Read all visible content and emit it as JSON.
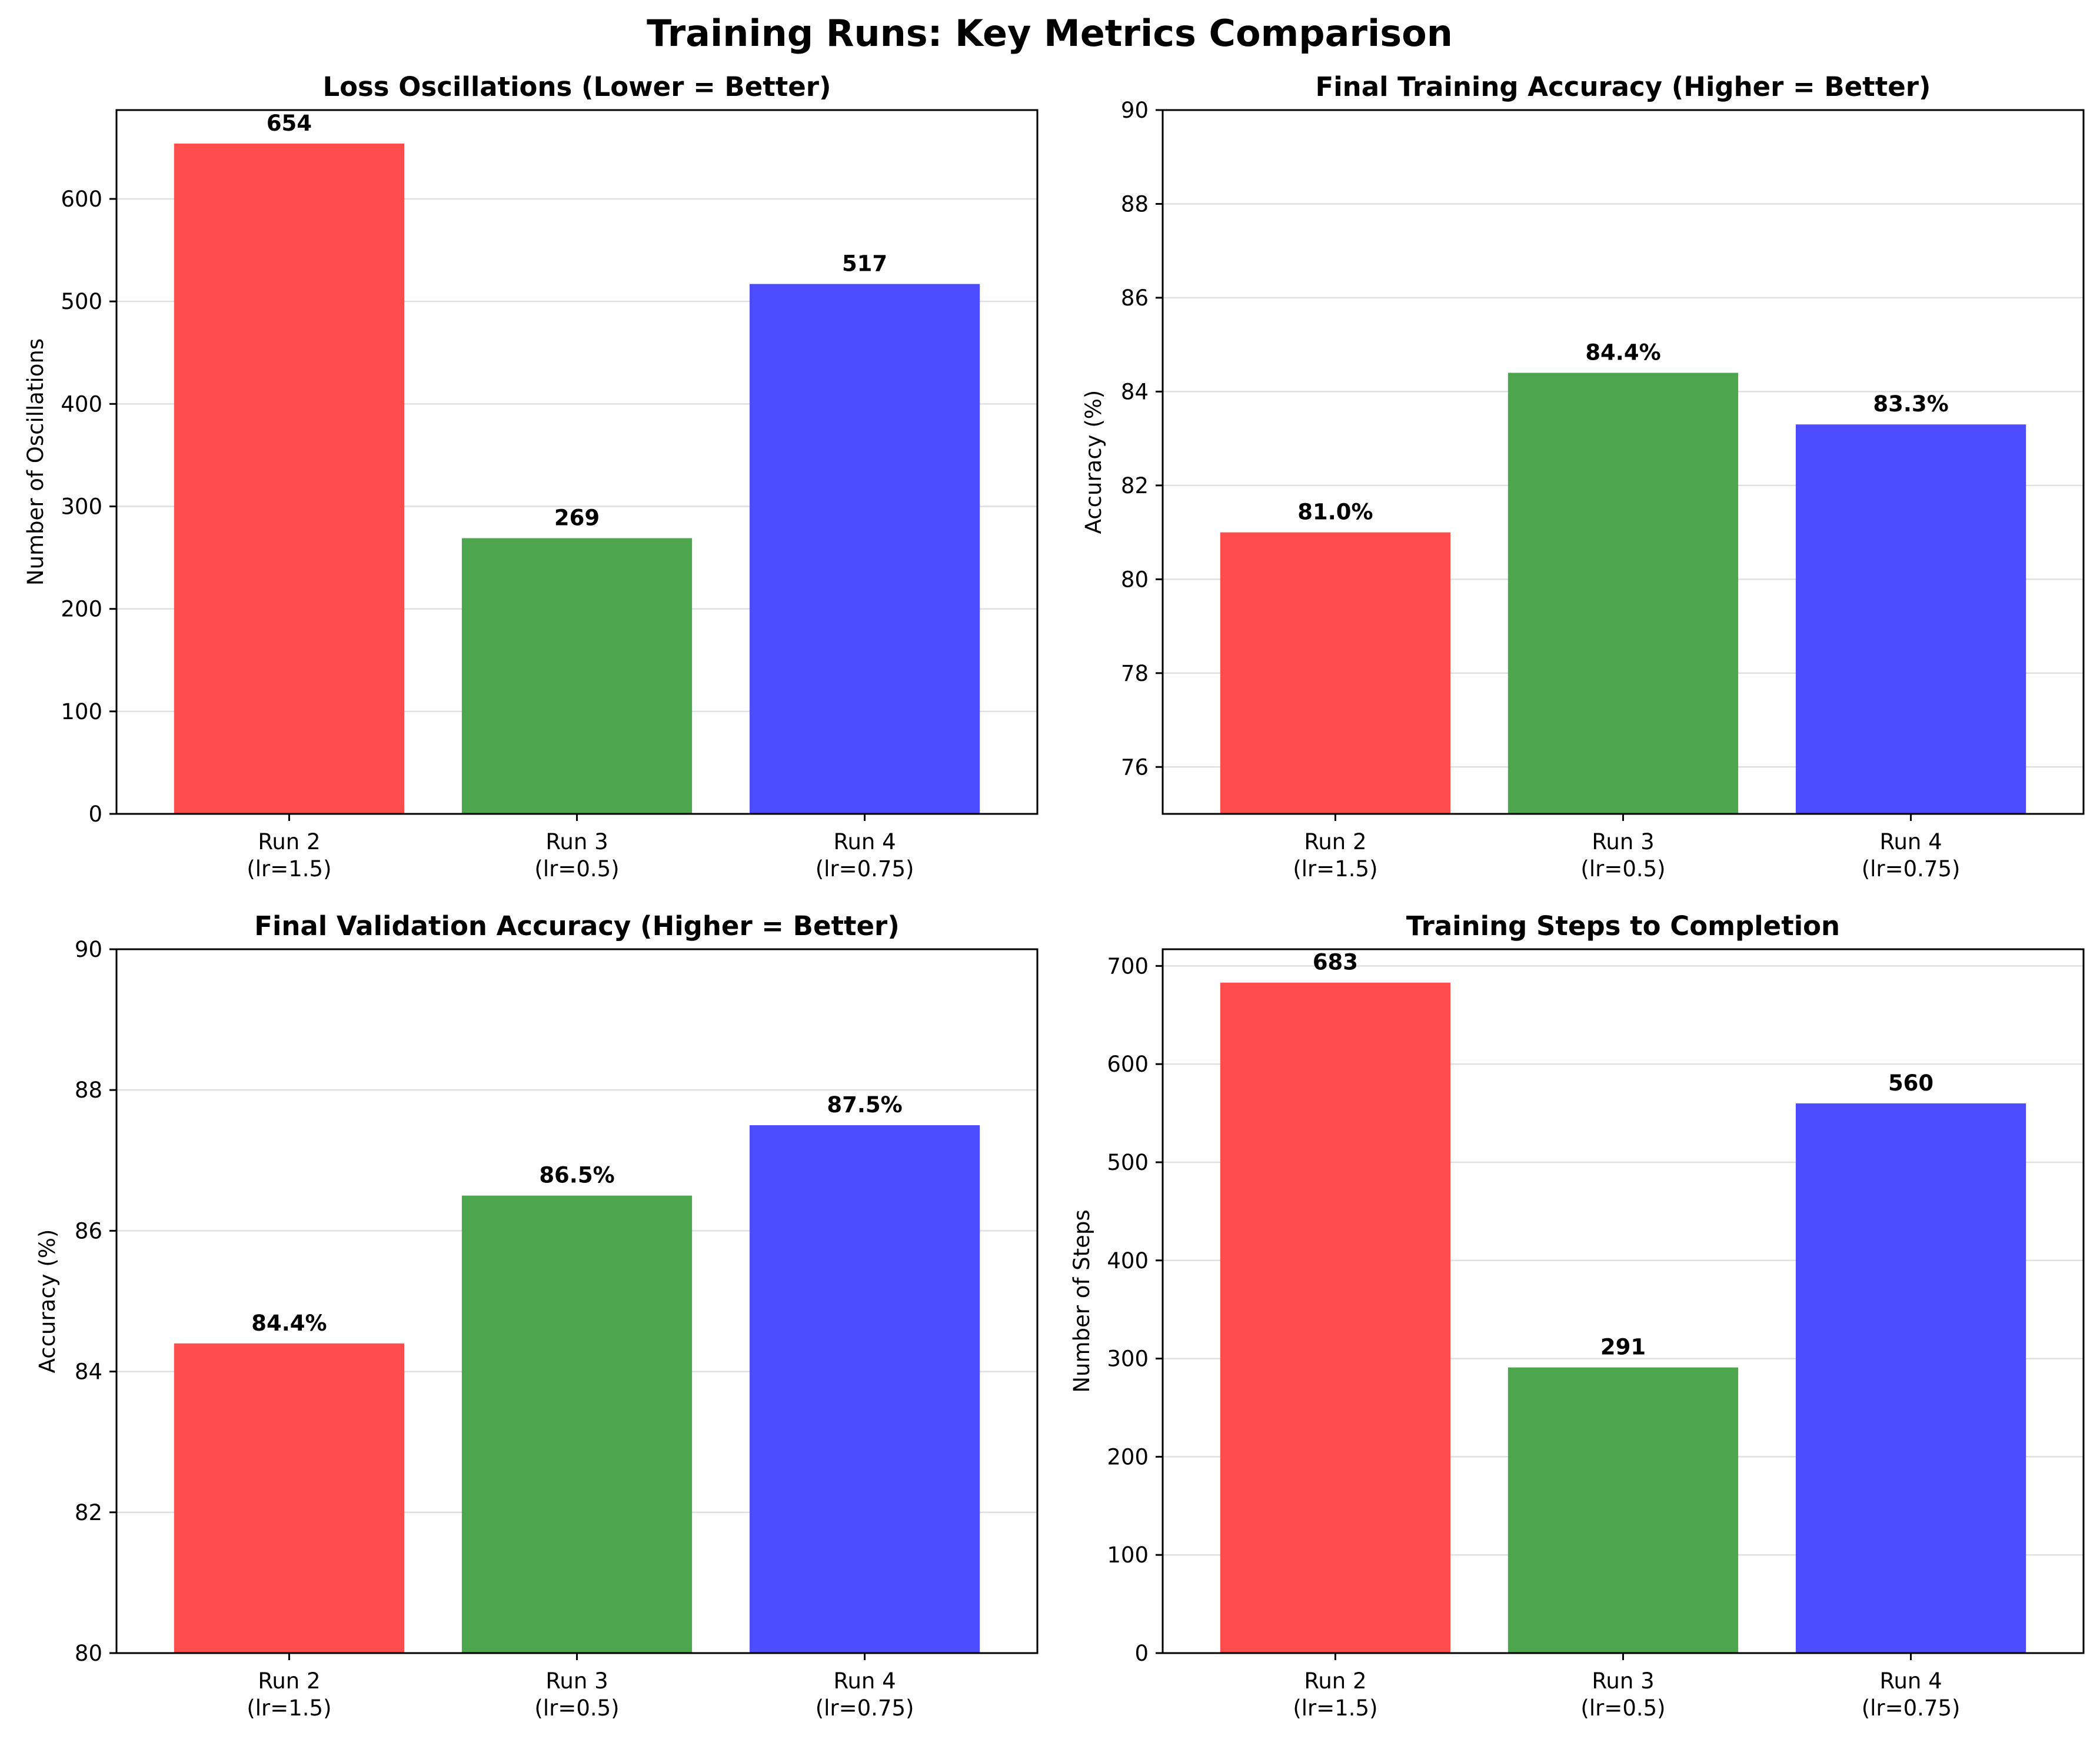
{
  "figure": {
    "title": "Training Runs: Key Metrics Comparison"
  },
  "chart_data": [
    {
      "type": "bar",
      "title": "Loss Oscillations (Lower = Better)",
      "xlabel": "",
      "ylabel": "Number of Oscillations",
      "categories": [
        [
          "Run 2",
          "(lr=1.5)"
        ],
        [
          "Run 3",
          "(lr=0.5)"
        ],
        [
          "Run 4",
          "(lr=0.75)"
        ]
      ],
      "values": [
        654,
        269,
        517
      ],
      "value_labels": [
        "654",
        "269",
        "517"
      ],
      "colors": [
        "#ff4d4d",
        "#4da64d",
        "#4d4dff"
      ],
      "ylim": [
        0,
        686.7
      ],
      "yticks": [
        0,
        100,
        200,
        300,
        400,
        500,
        600
      ],
      "grid": "y"
    },
    {
      "type": "bar",
      "title": "Final Training Accuracy (Higher = Better)",
      "xlabel": "",
      "ylabel": "Accuracy (%)",
      "categories": [
        [
          "Run 2",
          "(lr=1.5)"
        ],
        [
          "Run 3",
          "(lr=0.5)"
        ],
        [
          "Run 4",
          "(lr=0.75)"
        ]
      ],
      "values": [
        81.0,
        84.4,
        83.3
      ],
      "value_labels": [
        "81.0%",
        "84.4%",
        "83.3%"
      ],
      "colors": [
        "#ff4d4d",
        "#4da64d",
        "#4d4dff"
      ],
      "ylim": [
        75,
        90
      ],
      "yticks": [
        76,
        78,
        80,
        82,
        84,
        86,
        88,
        90
      ],
      "grid": "y"
    },
    {
      "type": "bar",
      "title": "Final Validation Accuracy (Higher = Better)",
      "xlabel": "",
      "ylabel": "Accuracy (%)",
      "categories": [
        [
          "Run 2",
          "(lr=1.5)"
        ],
        [
          "Run 3",
          "(lr=0.5)"
        ],
        [
          "Run 4",
          "(lr=0.75)"
        ]
      ],
      "values": [
        84.4,
        86.5,
        87.5
      ],
      "value_labels": [
        "84.4%",
        "86.5%",
        "87.5%"
      ],
      "colors": [
        "#ff4d4d",
        "#4da64d",
        "#4d4dff"
      ],
      "ylim": [
        80,
        90
      ],
      "yticks": [
        80,
        82,
        84,
        86,
        88,
        90
      ],
      "grid": "y"
    },
    {
      "type": "bar",
      "title": "Training Steps to Completion",
      "xlabel": "",
      "ylabel": "Number of Steps",
      "categories": [
        [
          "Run 2",
          "(lr=1.5)"
        ],
        [
          "Run 3",
          "(lr=0.5)"
        ],
        [
          "Run 4",
          "(lr=0.75)"
        ]
      ],
      "values": [
        683,
        291,
        560
      ],
      "value_labels": [
        "683",
        "291",
        "560"
      ],
      "colors": [
        "#ff4d4d",
        "#4da64d",
        "#4d4dff"
      ],
      "ylim": [
        0,
        717
      ],
      "yticks": [
        0,
        100,
        200,
        300,
        400,
        500,
        600,
        700
      ],
      "grid": "y"
    }
  ]
}
